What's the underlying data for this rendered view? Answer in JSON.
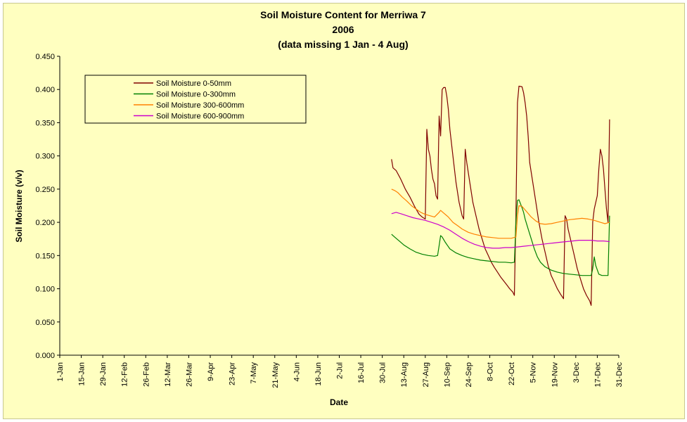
{
  "chart_data": {
    "type": "line",
    "title": [
      "Soil Moisture Content for Merriwa 7",
      "2006",
      "(data missing 1 Jan - 4 Aug)"
    ],
    "xlabel": "Date",
    "ylabel": "Soil Moisture (v/v)",
    "ylim": [
      0,
      0.45
    ],
    "yticks": [
      "0.000",
      "0.050",
      "0.100",
      "0.150",
      "0.200",
      "0.250",
      "0.300",
      "0.350",
      "0.400",
      "0.450"
    ],
    "x_tick_labels": [
      "1-Jan",
      "15-Jan",
      "29-Jan",
      "12-Feb",
      "26-Feb",
      "12-Mar",
      "26-Mar",
      "9-Apr",
      "23-Apr",
      "7-May",
      "21-May",
      "4-Jun",
      "18-Jun",
      "2-Jul",
      "16-Jul",
      "30-Jul",
      "13-Aug",
      "27-Aug",
      "10-Sep",
      "24-Sep",
      "8-Oct",
      "22-Oct",
      "5-Nov",
      "19-Nov",
      "3-Dec",
      "17-Dec",
      "31-Dec"
    ],
    "x_tick_days": [
      0,
      14,
      28,
      42,
      56,
      70,
      84,
      98,
      112,
      126,
      140,
      154,
      168,
      182,
      196,
      210,
      224,
      238,
      252,
      266,
      280,
      294,
      308,
      322,
      336,
      350,
      364
    ],
    "x_unit": "day of year 2006 (0 = 1-Jan)",
    "xlim": [
      0,
      364
    ],
    "grid": false,
    "legend_position": "top-left",
    "series": [
      {
        "name": "Soil Moisture 0-50mm",
        "color": "#800000",
        "points": [
          [
            216,
            0.295
          ],
          [
            217,
            0.282
          ],
          [
            219,
            0.278
          ],
          [
            222,
            0.265
          ],
          [
            225,
            0.25
          ],
          [
            228,
            0.238
          ],
          [
            231,
            0.224
          ],
          [
            234,
            0.212
          ],
          [
            236,
            0.208
          ],
          [
            238,
            0.205
          ],
          [
            239,
            0.34
          ],
          [
            240,
            0.31
          ],
          [
            241,
            0.3
          ],
          [
            242,
            0.28
          ],
          [
            243,
            0.265
          ],
          [
            244,
            0.258
          ],
          [
            245,
            0.24
          ],
          [
            246,
            0.235
          ],
          [
            247,
            0.36
          ],
          [
            248,
            0.33
          ],
          [
            249,
            0.4
          ],
          [
            250,
            0.403
          ],
          [
            251,
            0.403
          ],
          [
            252,
            0.39
          ],
          [
            253,
            0.37
          ],
          [
            254,
            0.34
          ],
          [
            256,
            0.3
          ],
          [
            258,
            0.26
          ],
          [
            260,
            0.23
          ],
          [
            262,
            0.21
          ],
          [
            263,
            0.205
          ],
          [
            264,
            0.31
          ],
          [
            265,
            0.29
          ],
          [
            267,
            0.26
          ],
          [
            269,
            0.23
          ],
          [
            271,
            0.21
          ],
          [
            273,
            0.19
          ],
          [
            275,
            0.175
          ],
          [
            277,
            0.16
          ],
          [
            279,
            0.15
          ],
          [
            281,
            0.14
          ],
          [
            283,
            0.132
          ],
          [
            285,
            0.125
          ],
          [
            287,
            0.118
          ],
          [
            289,
            0.112
          ],
          [
            291,
            0.106
          ],
          [
            293,
            0.1
          ],
          [
            295,
            0.095
          ],
          [
            296,
            0.09
          ],
          [
            297,
            0.21
          ],
          [
            298,
            0.38
          ],
          [
            299,
            0.405
          ],
          [
            301,
            0.404
          ],
          [
            302,
            0.395
          ],
          [
            303,
            0.38
          ],
          [
            304,
            0.36
          ],
          [
            305,
            0.33
          ],
          [
            306,
            0.29
          ],
          [
            308,
            0.26
          ],
          [
            310,
            0.23
          ],
          [
            312,
            0.2
          ],
          [
            314,
            0.175
          ],
          [
            316,
            0.155
          ],
          [
            318,
            0.135
          ],
          [
            320,
            0.12
          ],
          [
            322,
            0.11
          ],
          [
            324,
            0.1
          ],
          [
            326,
            0.092
          ],
          [
            328,
            0.085
          ],
          [
            329,
            0.21
          ],
          [
            330,
            0.205
          ],
          [
            331,
            0.19
          ],
          [
            333,
            0.17
          ],
          [
            335,
            0.15
          ],
          [
            337,
            0.13
          ],
          [
            339,
            0.115
          ],
          [
            341,
            0.1
          ],
          [
            343,
            0.09
          ],
          [
            345,
            0.082
          ],
          [
            346,
            0.075
          ],
          [
            347,
            0.2
          ],
          [
            348,
            0.22
          ],
          [
            350,
            0.24
          ],
          [
            351,
            0.28
          ],
          [
            352,
            0.31
          ],
          [
            353,
            0.3
          ],
          [
            354,
            0.28
          ],
          [
            355,
            0.25
          ],
          [
            356,
            0.22
          ],
          [
            357,
            0.2
          ],
          [
            358,
            0.355
          ]
        ]
      },
      {
        "name": "Soil Moisture 0-300mm",
        "color": "#008000",
        "points": [
          [
            216,
            0.182
          ],
          [
            218,
            0.178
          ],
          [
            221,
            0.172
          ],
          [
            224,
            0.166
          ],
          [
            228,
            0.16
          ],
          [
            232,
            0.155
          ],
          [
            236,
            0.152
          ],
          [
            240,
            0.15
          ],
          [
            244,
            0.149
          ],
          [
            246,
            0.15
          ],
          [
            247,
            0.165
          ],
          [
            248,
            0.18
          ],
          [
            249,
            0.178
          ],
          [
            251,
            0.17
          ],
          [
            254,
            0.16
          ],
          [
            258,
            0.154
          ],
          [
            262,
            0.15
          ],
          [
            266,
            0.147
          ],
          [
            270,
            0.145
          ],
          [
            274,
            0.143
          ],
          [
            278,
            0.142
          ],
          [
            282,
            0.141
          ],
          [
            286,
            0.14
          ],
          [
            290,
            0.14
          ],
          [
            294,
            0.139
          ],
          [
            296,
            0.14
          ],
          [
            297,
            0.2
          ],
          [
            298,
            0.233
          ],
          [
            299,
            0.234
          ],
          [
            300,
            0.228
          ],
          [
            301,
            0.222
          ],
          [
            302,
            0.215
          ],
          [
            303,
            0.205
          ],
          [
            305,
            0.19
          ],
          [
            307,
            0.175
          ],
          [
            309,
            0.16
          ],
          [
            311,
            0.148
          ],
          [
            313,
            0.14
          ],
          [
            316,
            0.133
          ],
          [
            320,
            0.128
          ],
          [
            324,
            0.125
          ],
          [
            328,
            0.123
          ],
          [
            332,
            0.122
          ],
          [
            336,
            0.121
          ],
          [
            340,
            0.12
          ],
          [
            344,
            0.12
          ],
          [
            346,
            0.12
          ],
          [
            347,
            0.13
          ],
          [
            348,
            0.148
          ],
          [
            349,
            0.135
          ],
          [
            351,
            0.122
          ],
          [
            353,
            0.12
          ],
          [
            355,
            0.12
          ],
          [
            357,
            0.12
          ],
          [
            358,
            0.21
          ]
        ]
      },
      {
        "name": "Soil Moisture 300-600mm",
        "color": "#ff8000",
        "points": [
          [
            216,
            0.25
          ],
          [
            218,
            0.248
          ],
          [
            220,
            0.245
          ],
          [
            223,
            0.238
          ],
          [
            226,
            0.232
          ],
          [
            229,
            0.225
          ],
          [
            232,
            0.22
          ],
          [
            235,
            0.215
          ],
          [
            238,
            0.212
          ],
          [
            241,
            0.21
          ],
          [
            244,
            0.208
          ],
          [
            247,
            0.215
          ],
          [
            248,
            0.218
          ],
          [
            250,
            0.214
          ],
          [
            253,
            0.208
          ],
          [
            256,
            0.2
          ],
          [
            259,
            0.195
          ],
          [
            262,
            0.19
          ],
          [
            266,
            0.185
          ],
          [
            270,
            0.182
          ],
          [
            274,
            0.18
          ],
          [
            278,
            0.178
          ],
          [
            282,
            0.177
          ],
          [
            286,
            0.176
          ],
          [
            290,
            0.176
          ],
          [
            294,
            0.176
          ],
          [
            297,
            0.178
          ],
          [
            298,
            0.21
          ],
          [
            299,
            0.225
          ],
          [
            301,
            0.224
          ],
          [
            304,
            0.216
          ],
          [
            307,
            0.208
          ],
          [
            310,
            0.202
          ],
          [
            313,
            0.198
          ],
          [
            316,
            0.197
          ],
          [
            320,
            0.198
          ],
          [
            324,
            0.2
          ],
          [
            328,
            0.202
          ],
          [
            332,
            0.204
          ],
          [
            336,
            0.205
          ],
          [
            340,
            0.206
          ],
          [
            344,
            0.205
          ],
          [
            348,
            0.203
          ],
          [
            352,
            0.2
          ],
          [
            355,
            0.198
          ],
          [
            358,
            0.2
          ]
        ]
      },
      {
        "name": "Soil Moisture 600-900mm",
        "color": "#cc00cc",
        "points": [
          [
            216,
            0.213
          ],
          [
            219,
            0.215
          ],
          [
            222,
            0.213
          ],
          [
            226,
            0.21
          ],
          [
            230,
            0.207
          ],
          [
            234,
            0.205
          ],
          [
            238,
            0.203
          ],
          [
            242,
            0.2
          ],
          [
            246,
            0.197
          ],
          [
            250,
            0.193
          ],
          [
            254,
            0.188
          ],
          [
            258,
            0.182
          ],
          [
            262,
            0.176
          ],
          [
            266,
            0.171
          ],
          [
            270,
            0.167
          ],
          [
            274,
            0.164
          ],
          [
            278,
            0.162
          ],
          [
            282,
            0.161
          ],
          [
            286,
            0.161
          ],
          [
            290,
            0.162
          ],
          [
            294,
            0.162
          ],
          [
            298,
            0.163
          ],
          [
            302,
            0.164
          ],
          [
            306,
            0.165
          ],
          [
            310,
            0.166
          ],
          [
            314,
            0.167
          ],
          [
            318,
            0.168
          ],
          [
            322,
            0.169
          ],
          [
            326,
            0.17
          ],
          [
            330,
            0.171
          ],
          [
            334,
            0.172
          ],
          [
            338,
            0.173
          ],
          [
            342,
            0.173
          ],
          [
            346,
            0.173
          ],
          [
            350,
            0.172
          ],
          [
            354,
            0.172
          ],
          [
            358,
            0.171
          ]
        ]
      }
    ]
  }
}
